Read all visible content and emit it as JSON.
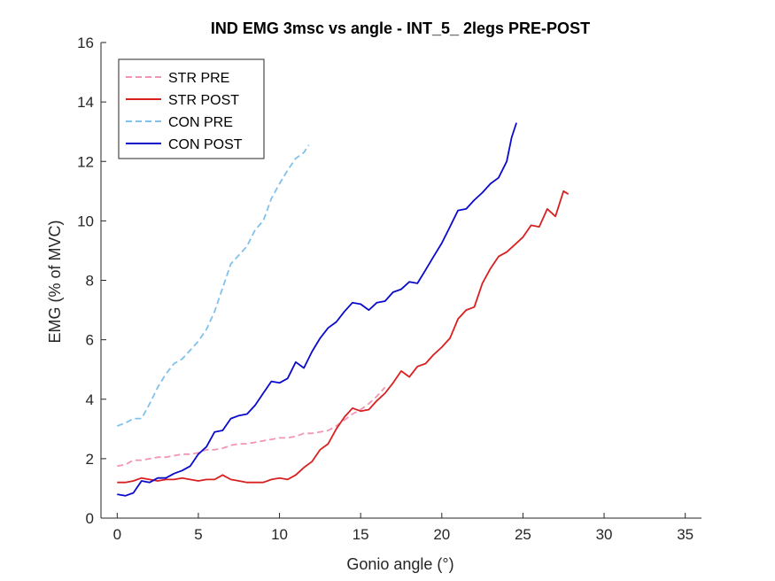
{
  "chart_data": {
    "type": "line",
    "title": "IND EMG 3msc vs angle - INT_5_ 2legs PRE-POST",
    "xlabel": "Gonio angle (°)",
    "ylabel": "EMG (% of MVC)",
    "xlim": [
      -1,
      36
    ],
    "ylim": [
      0,
      16
    ],
    "xticks": [
      0,
      5,
      10,
      15,
      20,
      25,
      30,
      35
    ],
    "yticks": [
      0,
      2,
      4,
      6,
      8,
      10,
      12,
      14,
      16
    ],
    "grid": false,
    "legend_position": "top-left",
    "series": [
      {
        "name": "STR PRE",
        "color": "#f294b6",
        "dash": "dashed",
        "x": [
          0,
          0.5,
          1,
          1.5,
          2,
          2.5,
          3,
          3.5,
          4,
          4.5,
          5,
          5.5,
          6,
          6.5,
          7,
          7.5,
          8,
          8.5,
          9,
          9.5,
          10,
          10.5,
          11,
          11.5,
          12,
          12.5,
          13,
          13.5,
          14,
          14.5,
          15,
          15.5,
          16,
          16.5
        ],
        "values": [
          1.75,
          1.8,
          1.95,
          1.95,
          2.0,
          2.05,
          2.05,
          2.1,
          2.15,
          2.15,
          2.2,
          2.3,
          2.3,
          2.35,
          2.45,
          2.5,
          2.5,
          2.55,
          2.6,
          2.65,
          2.7,
          2.7,
          2.75,
          2.85,
          2.85,
          2.9,
          2.95,
          3.1,
          3.3,
          3.5,
          3.65,
          3.85,
          4.1,
          4.4
        ]
      },
      {
        "name": "STR POST",
        "color": "#d92020",
        "dash": "solid",
        "x": [
          0,
          0.5,
          1,
          1.5,
          2,
          2.5,
          3,
          3.5,
          4,
          4.5,
          5,
          5.5,
          6,
          6.5,
          7,
          7.5,
          8,
          8.5,
          9,
          9.5,
          10,
          10.5,
          11,
          11.5,
          12,
          12.5,
          13,
          13.5,
          14,
          14.5,
          15,
          15.5,
          16,
          16.5,
          17,
          17.5,
          18,
          18.5,
          19,
          19.5,
          20,
          20.5,
          21,
          21.5,
          22,
          22.5,
          23,
          23.5,
          24,
          24.5,
          25,
          25.5,
          26,
          26.5,
          27,
          27.5,
          27.8
        ],
        "values": [
          1.2,
          1.2,
          1.25,
          1.35,
          1.3,
          1.25,
          1.3,
          1.3,
          1.35,
          1.3,
          1.25,
          1.3,
          1.3,
          1.45,
          1.3,
          1.25,
          1.2,
          1.2,
          1.2,
          1.3,
          1.35,
          1.3,
          1.45,
          1.7,
          1.9,
          2.3,
          2.5,
          3.0,
          3.4,
          3.7,
          3.6,
          3.65,
          3.95,
          4.2,
          4.55,
          4.95,
          4.75,
          5.1,
          5.2,
          5.5,
          5.75,
          6.05,
          6.7,
          7.0,
          7.1,
          7.9,
          8.4,
          8.8,
          8.95,
          9.2,
          9.45,
          9.85,
          9.8,
          10.4,
          10.15,
          11.0,
          10.9
        ]
      },
      {
        "name": "CON PRE",
        "color": "#80c2ec",
        "dash": "dashed",
        "x": [
          0,
          0.5,
          1,
          1.5,
          2,
          2.5,
          3,
          3.5,
          4,
          4.5,
          5,
          5.5,
          6,
          6.5,
          7,
          7.5,
          8,
          8.5,
          9,
          9.5,
          10,
          10.5,
          11,
          11.5,
          11.8
        ],
        "values": [
          3.1,
          3.2,
          3.35,
          3.35,
          3.85,
          4.4,
          4.85,
          5.2,
          5.35,
          5.65,
          5.95,
          6.35,
          6.95,
          7.75,
          8.55,
          8.85,
          9.15,
          9.7,
          10.0,
          10.75,
          11.25,
          11.7,
          12.1,
          12.3,
          12.55
        ]
      },
      {
        "name": "CON POST",
        "color": "#0a0acc",
        "dash": "solid",
        "x": [
          0,
          0.5,
          1,
          1.5,
          2,
          2.5,
          3,
          3.5,
          4,
          4.5,
          5,
          5.5,
          6,
          6.5,
          7,
          7.5,
          8,
          8.5,
          9,
          9.5,
          10,
          10.5,
          11,
          11.5,
          12,
          12.5,
          13,
          13.5,
          14,
          14.5,
          15,
          15.5,
          16,
          16.5,
          17,
          17.5,
          18,
          18.5,
          19,
          19.5,
          20,
          20.5,
          21,
          21.5,
          22,
          22.5,
          23,
          23.5,
          24,
          24.3,
          24.6
        ],
        "values": [
          0.8,
          0.75,
          0.85,
          1.25,
          1.2,
          1.35,
          1.35,
          1.5,
          1.6,
          1.75,
          2.15,
          2.4,
          2.9,
          2.95,
          3.35,
          3.45,
          3.5,
          3.8,
          4.2,
          4.6,
          4.55,
          4.7,
          5.25,
          5.05,
          5.6,
          6.05,
          6.4,
          6.6,
          6.95,
          7.25,
          7.2,
          7.0,
          7.25,
          7.3,
          7.6,
          7.7,
          7.95,
          7.9,
          8.35,
          8.8,
          9.25,
          9.8,
          10.35,
          10.4,
          10.7,
          10.95,
          11.25,
          11.45,
          12.0,
          12.8,
          13.3
        ]
      }
    ]
  }
}
